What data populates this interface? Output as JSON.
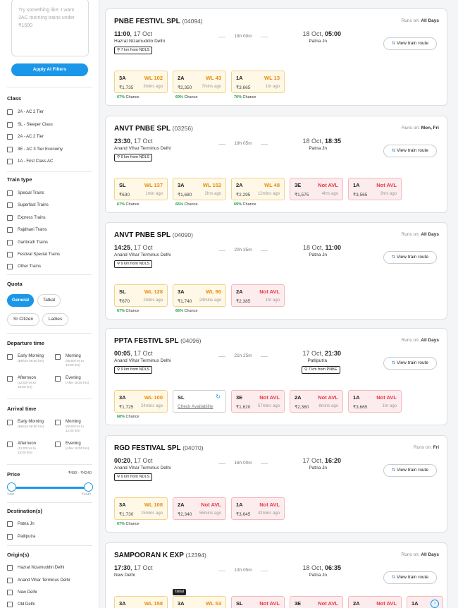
{
  "sidebar": {
    "ai_placeholder": "Try something like: I want 3AC morning trains under ₹1500",
    "apply_label": "Apply AI Filters",
    "class_title": "Class",
    "classes": [
      "2A - AC 2 Tier",
      "SL - Sleeper Class",
      "2A - AC 2 Tier",
      "3E - AC 3 Tier Economy",
      "1A - First Class AC"
    ],
    "train_type_title": "Train type",
    "train_types": [
      "Special Trains",
      "Superfast Trains",
      "Express Trains",
      "Rajdhani Trains",
      "Garibrath Trains",
      "Festival Special Trains",
      "Other Trains"
    ],
    "quota_title": "Quota",
    "quotas": [
      "General",
      "Tatkal",
      "Sr Citizen",
      "Ladies"
    ],
    "departure_title": "Departure time",
    "arrival_title": "Arrival time",
    "time_slots": [
      {
        "name": "Early Morning",
        "range": "(Before 06:00 hrs)"
      },
      {
        "name": "Morning",
        "range": "(06:00 hrs to 12:00 hrs)"
      },
      {
        "name": "Afternoon",
        "range": "(12:00 hrs to 18:00 hrs)"
      },
      {
        "name": "Evening",
        "range": "(After 18:00 hrs)"
      }
    ],
    "price_title": "Price",
    "price_range": "₹490 - ₹4240",
    "price_min": "₹490",
    "price_max": "₹4240",
    "destination_title": "Destination(s)",
    "destinations": [
      "Patna Jn",
      "Patliputra"
    ],
    "origin_title": "Origin(s)",
    "origins": [
      "Hazrat Nizamuddin Delhi",
      "Anand Vihar Terminus Delhi",
      "New Delhi",
      "Old Delhi"
    ]
  },
  "common": {
    "runs_on": "Runs on:",
    "view_route": "View train route",
    "chance_suffix": "Chance",
    "check_availability": "Check Availability",
    "tatkal_tag": "Tatkal"
  },
  "trains": [
    {
      "name": "PNBE FESTIVL SPL",
      "number": "(04094)",
      "runs": "All Days",
      "dep_time": "11:00",
      "dep_date": "17 Oct",
      "from": "Hazrat Nizamuddin Delhi",
      "from_dist": "7 km from NDLS",
      "duration": "18h 00m",
      "arr_date": "18 Oct",
      "arr_time": "05:00",
      "to": "Patna Jn",
      "classes": [
        {
          "cls": "3A",
          "status": "WL 102",
          "price": "₹1,735",
          "updated": "3mins ago",
          "chance": "67%"
        },
        {
          "cls": "2A",
          "status": "WL 43",
          "price": "₹2,350",
          "updated": "7mins ago",
          "chance": "69%"
        },
        {
          "cls": "1A",
          "status": "WL 13",
          "price": "₹3,665",
          "updated": "1hr ago",
          "chance": "70%"
        }
      ]
    },
    {
      "name": "ANVT PNBE SPL",
      "number": "(03256)",
      "runs": "Mon, Fri",
      "dep_time": "23:30",
      "dep_date": "17 Oct",
      "from": "Anand Vihar Terminus Delhi",
      "from_dist": "9 km from NDLS",
      "duration": "19h 05m",
      "arr_date": "18 Oct",
      "arr_time": "18:35",
      "to": "Patna Jn",
      "classes": [
        {
          "cls": "SL",
          "status": "WL 137",
          "price": "₹630",
          "updated": "1min ago",
          "chance": "67%"
        },
        {
          "cls": "3A",
          "status": "WL 152",
          "price": "₹1,680",
          "updated": "2hrs ago",
          "chance": "66%"
        },
        {
          "cls": "2A",
          "status": "WL 48",
          "price": "₹2,295",
          "updated": "12mins ago",
          "chance": "69%"
        },
        {
          "cls": "3E",
          "status": "Not AVL",
          "price": "₹1,575",
          "updated": "4hrs ago"
        },
        {
          "cls": "1A",
          "status": "Not AVL",
          "price": "₹3,565",
          "updated": "3hrs ago"
        }
      ]
    },
    {
      "name": "ANVT PNBE SPL",
      "number": "(04090)",
      "runs": "All Days",
      "dep_time": "14:25",
      "dep_date": "17 Oct",
      "from": "Anand Vihar Terminus Delhi",
      "from_dist": "9 km from NDLS",
      "duration": "20h 35m",
      "arr_date": "18 Oct",
      "arr_time": "11:00",
      "to": "Patna Jn",
      "classes": [
        {
          "cls": "SL",
          "status": "WL 128",
          "price": "₹670",
          "updated": "2mins ago",
          "chance": "67%"
        },
        {
          "cls": "3A",
          "status": "WL 90",
          "price": "₹1,740",
          "updated": "24mins ago",
          "chance": "66%"
        },
        {
          "cls": "2A",
          "status": "Not AVL",
          "price": "₹2,385",
          "updated": "1hr ago"
        }
      ]
    },
    {
      "name": "PPTA FESTIVL SPL",
      "number": "(04096)",
      "runs": "All Days",
      "dep_time": "00:05",
      "dep_date": "17 Oct",
      "from": "Anand Vihar Terminus Delhi",
      "from_dist": "9 km from NDLS",
      "duration": "21h 25m",
      "arr_date": "17 Oct",
      "arr_time": "21:30",
      "to": "Patliputra",
      "to_dist": "7 km from PNBE",
      "classes": [
        {
          "cls": "3A",
          "status": "WL 100",
          "price": "₹1,725",
          "updated": "24mins ago",
          "chance": "68%"
        },
        {
          "cls": "SL",
          "check": true
        },
        {
          "cls": "3E",
          "status": "Not AVL",
          "price": "₹1,620",
          "updated": "57mins ago"
        },
        {
          "cls": "2A",
          "status": "Not AVL",
          "price": "₹2,360",
          "updated": "8mins ago"
        },
        {
          "cls": "1A",
          "status": "Not AVL",
          "price": "₹3,665",
          "updated": "1hr ago"
        }
      ]
    },
    {
      "name": "RGD FESTIVAL SPL",
      "number": "(04070)",
      "runs": "Fri",
      "dep_time": "00:20",
      "dep_date": "17 Oct",
      "from": "Anand Vihar Terminus Delhi",
      "from_dist": "9 km from NDLS",
      "duration": "16h 00m",
      "arr_date": "17 Oct",
      "arr_time": "16:20",
      "to": "Patna Jn",
      "classes": [
        {
          "cls": "3A",
          "status": "WL 108",
          "price": "₹1,730",
          "updated": "15mins ago",
          "chance": "67%"
        },
        {
          "cls": "2A",
          "status": "Not AVL",
          "price": "₹2,340",
          "updated": "55mins ago"
        },
        {
          "cls": "1A",
          "status": "Not AVL",
          "price": "₹3,645",
          "updated": "42mins ago"
        }
      ]
    },
    {
      "name": "SAMPOORAN K EXP",
      "number": "(12394)",
      "runs": "All Days",
      "dep_time": "17:30",
      "dep_date": "17 Oct",
      "from": "New Delhi",
      "duration": "13h 05m",
      "arr_date": "18 Oct",
      "arr_time": "06:35",
      "to": "Patna Jn",
      "classes": [
        {
          "cls": "3A",
          "status": "WL 158"
        },
        {
          "cls": "3A",
          "status": "WL 53",
          "tatkal": true
        },
        {
          "cls": "SL",
          "status": "Not AVL"
        },
        {
          "cls": "3E",
          "status": "Not AVL"
        },
        {
          "cls": "2A",
          "status": "Not AVL"
        },
        {
          "cls": "1A",
          "status": "Not AVL"
        }
      ]
    }
  ]
}
